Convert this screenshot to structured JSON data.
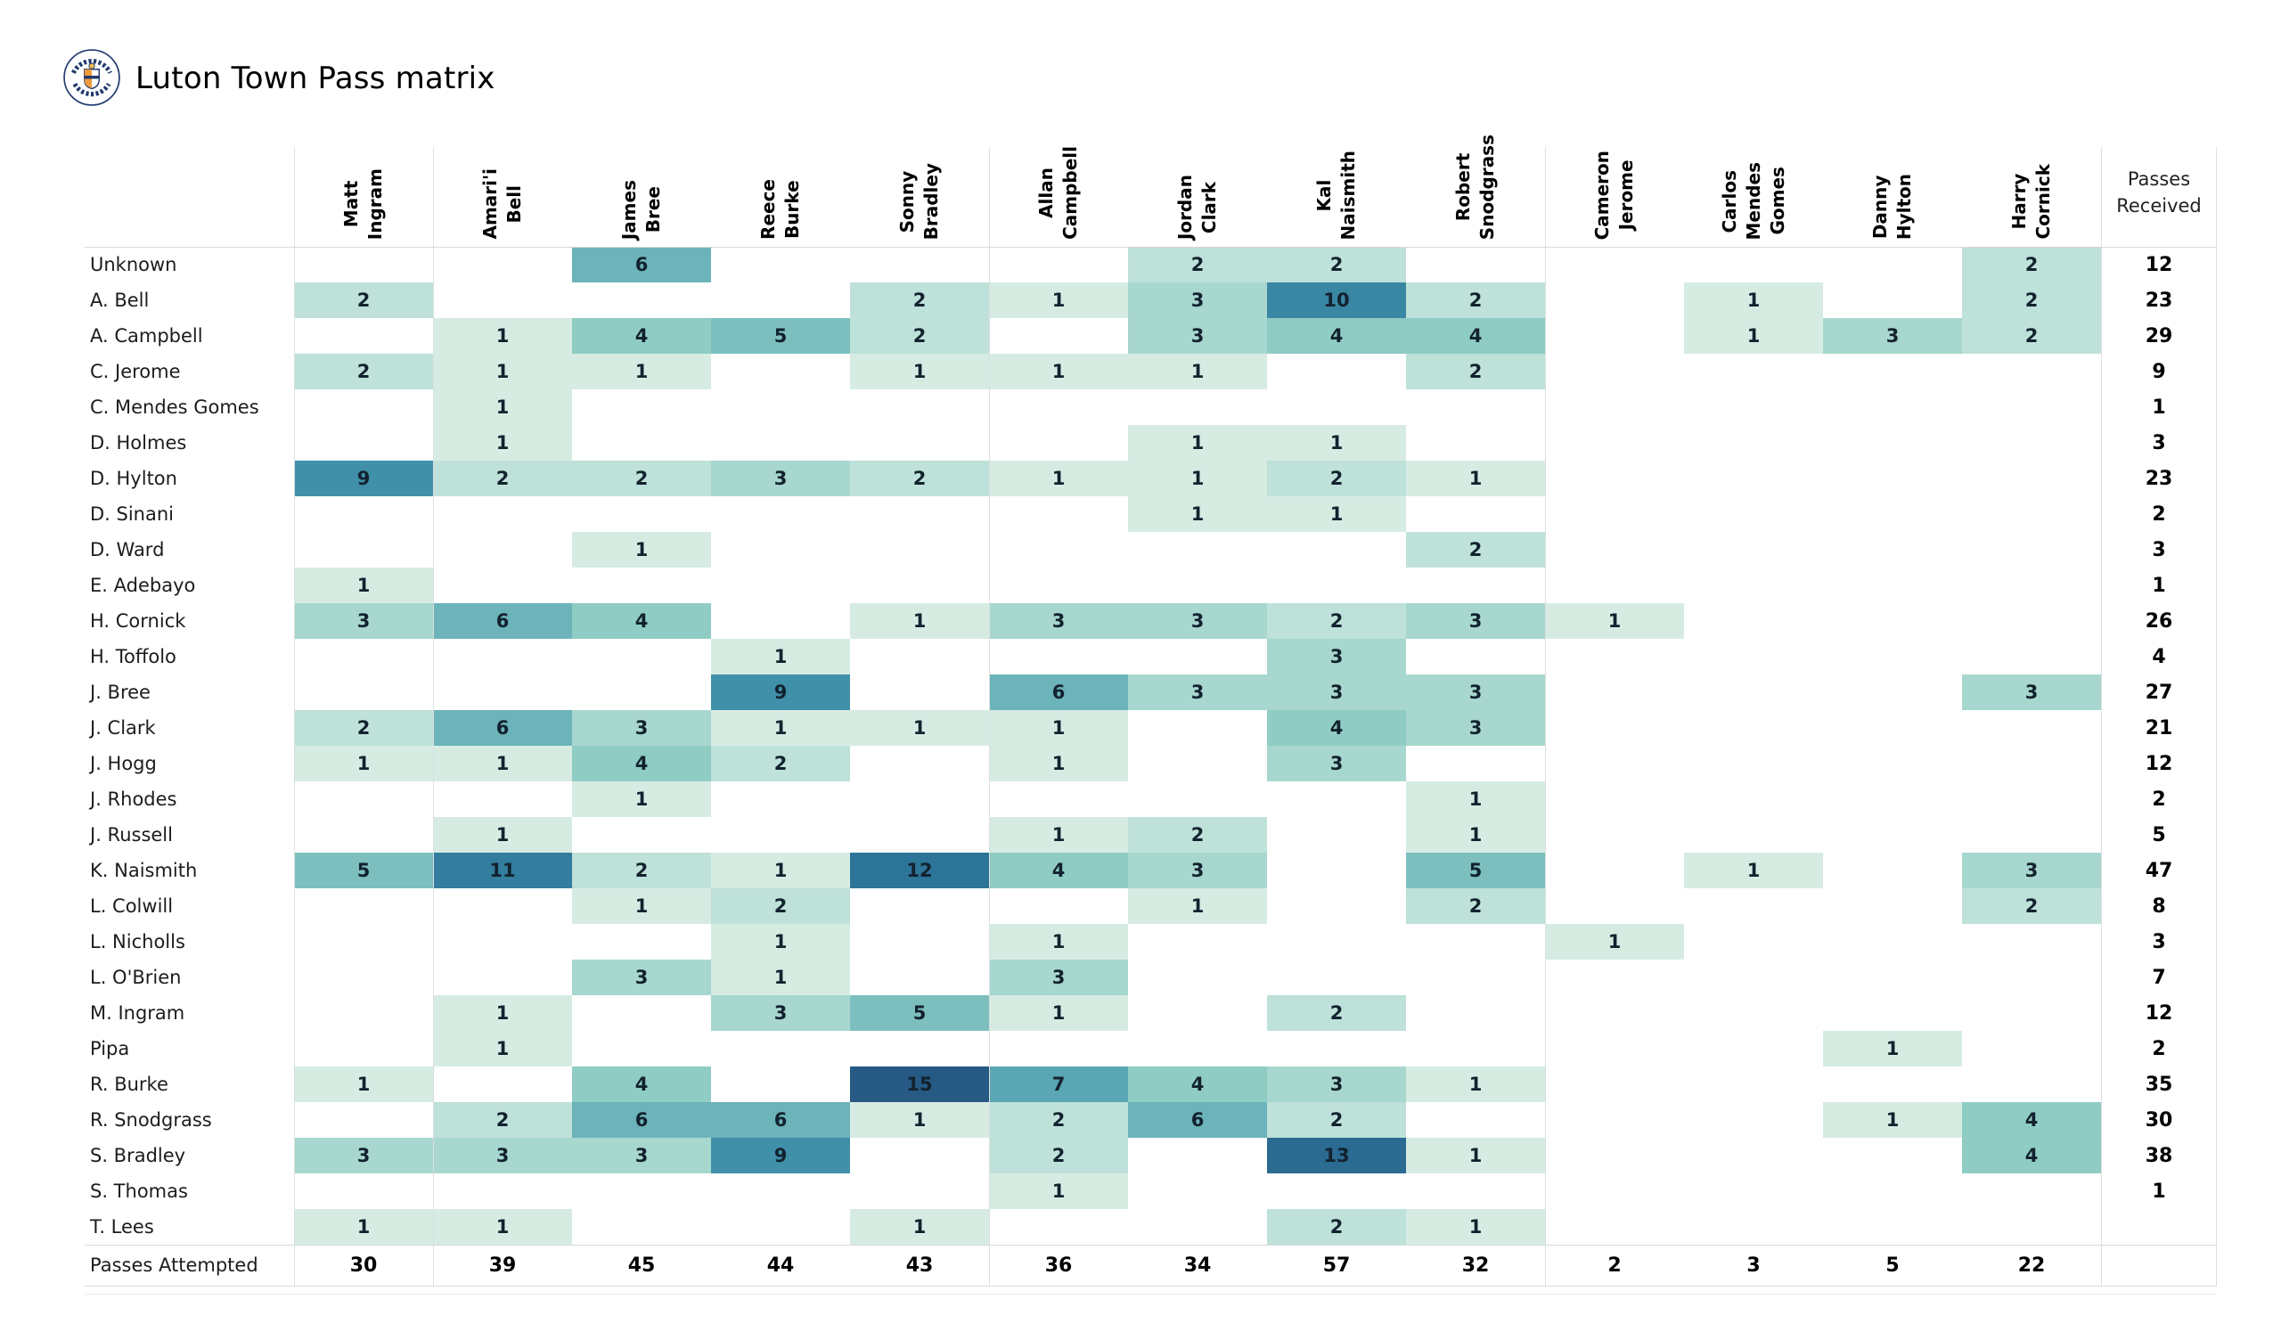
{
  "header": {
    "title": "Luton Town Pass matrix",
    "logo": "luton-town-crest"
  },
  "style": {
    "background": "#ffffff",
    "grid_color": "#dcdfe1",
    "cell_text_color": "#12222e",
    "heat_palette": [
      "#d6ece3",
      "#bee1d9",
      "#a7d7ce",
      "#8fccc4",
      "#7dbfbf",
      "#6cb3ba",
      "#5aa6b4",
      "#4899af",
      "#4190aa",
      "#3a87a4",
      "#337d9e",
      "#2d7499",
      "#2b6b92",
      "#28638b",
      "#265a84"
    ],
    "crest_navy": "#223a70",
    "crest_orange": "#ef9b3d",
    "crest_gold": "#f5c24b"
  },
  "chart_data": {
    "type": "heatmap",
    "title": "Luton Town Pass matrix",
    "xlabel": "",
    "ylabel": "",
    "legend": "none",
    "grid": "group separators only",
    "columns": [
      "Matt\nIngram",
      "Amari'i\nBell",
      "James\nBree",
      "Reece\nBurke",
      "Sonny\nBradley",
      "Allan\nCampbell",
      "Jordan\nClark",
      "Kal\nNaismith",
      "Robert\nSnodgrass",
      "Cameron\nJerome",
      "Carlos\nMendes\nGomes",
      "Danny\nHylton",
      "Harry\nCornick"
    ],
    "column_group_separators_after": [
      1,
      5,
      9
    ],
    "rows": [
      "Unknown",
      "A. Bell",
      "A. Campbell",
      "C. Jerome",
      "C. Mendes Gomes",
      "D. Holmes",
      "D. Hylton",
      "D. Sinani",
      "D. Ward",
      "E. Adebayo",
      "H. Cornick",
      "H. Toffolo",
      "J. Bree",
      "J. Clark",
      "J. Hogg",
      "J. Rhodes",
      "J. Russell",
      "K. Naismith",
      "L. Colwill",
      "L. Nicholls",
      "L. O'Brien",
      "M. Ingram",
      "Pipa",
      "R. Burke",
      "R. Snodgrass",
      "S. Bradley",
      "S. Thomas",
      "T. Lees"
    ],
    "matrix": [
      [
        null,
        null,
        6,
        null,
        null,
        null,
        2,
        2,
        null,
        null,
        null,
        null,
        2
      ],
      [
        2,
        null,
        null,
        null,
        2,
        1,
        3,
        10,
        2,
        null,
        1,
        null,
        2
      ],
      [
        null,
        1,
        4,
        5,
        2,
        null,
        3,
        4,
        4,
        null,
        1,
        3,
        2
      ],
      [
        2,
        1,
        1,
        null,
        1,
        1,
        1,
        null,
        2,
        null,
        null,
        null,
        null
      ],
      [
        null,
        1,
        null,
        null,
        null,
        null,
        null,
        null,
        null,
        null,
        null,
        null,
        null
      ],
      [
        null,
        1,
        null,
        null,
        null,
        null,
        1,
        1,
        null,
        null,
        null,
        null,
        null
      ],
      [
        9,
        2,
        2,
        3,
        2,
        1,
        1,
        2,
        1,
        null,
        null,
        null,
        null
      ],
      [
        null,
        null,
        null,
        null,
        null,
        null,
        1,
        1,
        null,
        null,
        null,
        null,
        null
      ],
      [
        null,
        null,
        1,
        null,
        null,
        null,
        null,
        null,
        2,
        null,
        null,
        null,
        null
      ],
      [
        1,
        null,
        null,
        null,
        null,
        null,
        null,
        null,
        null,
        null,
        null,
        null,
        null
      ],
      [
        3,
        6,
        4,
        null,
        1,
        3,
        3,
        2,
        3,
        1,
        null,
        null,
        null
      ],
      [
        null,
        null,
        null,
        1,
        null,
        null,
        null,
        3,
        null,
        null,
        null,
        null,
        null
      ],
      [
        null,
        null,
        null,
        9,
        null,
        6,
        3,
        3,
        3,
        null,
        null,
        null,
        3
      ],
      [
        2,
        6,
        3,
        1,
        1,
        1,
        null,
        4,
        3,
        null,
        null,
        null,
        null
      ],
      [
        1,
        1,
        4,
        2,
        null,
        1,
        null,
        3,
        null,
        null,
        null,
        null,
        null
      ],
      [
        null,
        null,
        1,
        null,
        null,
        null,
        null,
        null,
        1,
        null,
        null,
        null,
        null
      ],
      [
        null,
        1,
        null,
        null,
        null,
        1,
        2,
        null,
        1,
        null,
        null,
        null,
        null
      ],
      [
        5,
        11,
        2,
        1,
        12,
        4,
        3,
        null,
        5,
        null,
        1,
        null,
        3
      ],
      [
        null,
        null,
        1,
        2,
        null,
        null,
        1,
        null,
        2,
        null,
        null,
        null,
        2
      ],
      [
        null,
        null,
        null,
        1,
        null,
        1,
        null,
        null,
        null,
        1,
        null,
        null,
        null
      ],
      [
        null,
        null,
        3,
        1,
        null,
        3,
        null,
        null,
        null,
        null,
        null,
        null,
        null
      ],
      [
        null,
        1,
        null,
        3,
        5,
        1,
        null,
        2,
        null,
        null,
        null,
        null,
        null
      ],
      [
        null,
        1,
        null,
        null,
        null,
        null,
        null,
        null,
        null,
        null,
        null,
        1,
        null
      ],
      [
        1,
        null,
        4,
        null,
        15,
        7,
        4,
        3,
        1,
        null,
        null,
        null,
        null
      ],
      [
        null,
        2,
        6,
        6,
        1,
        2,
        6,
        2,
        null,
        null,
        null,
        1,
        4
      ],
      [
        3,
        3,
        3,
        9,
        null,
        2,
        null,
        13,
        1,
        null,
        null,
        null,
        4
      ],
      [
        null,
        null,
        null,
        null,
        null,
        1,
        null,
        null,
        null,
        null,
        null,
        null,
        null
      ],
      [
        1,
        1,
        null,
        null,
        1,
        null,
        null,
        2,
        1,
        null,
        null,
        null,
        null
      ]
    ],
    "passes_received_label": "Passes\nReceived",
    "passes_received": [
      12,
      23,
      29,
      9,
      1,
      3,
      23,
      2,
      3,
      1,
      26,
      4,
      27,
      21,
      12,
      2,
      5,
      47,
      8,
      3,
      7,
      12,
      2,
      35,
      30,
      38,
      1,
      null
    ],
    "passes_attempted_label": "Passes Attempted",
    "passes_attempted": [
      30,
      39,
      45,
      44,
      43,
      36,
      34,
      57,
      32,
      2,
      3,
      5,
      22
    ],
    "value_range": [
      1,
      15
    ]
  }
}
